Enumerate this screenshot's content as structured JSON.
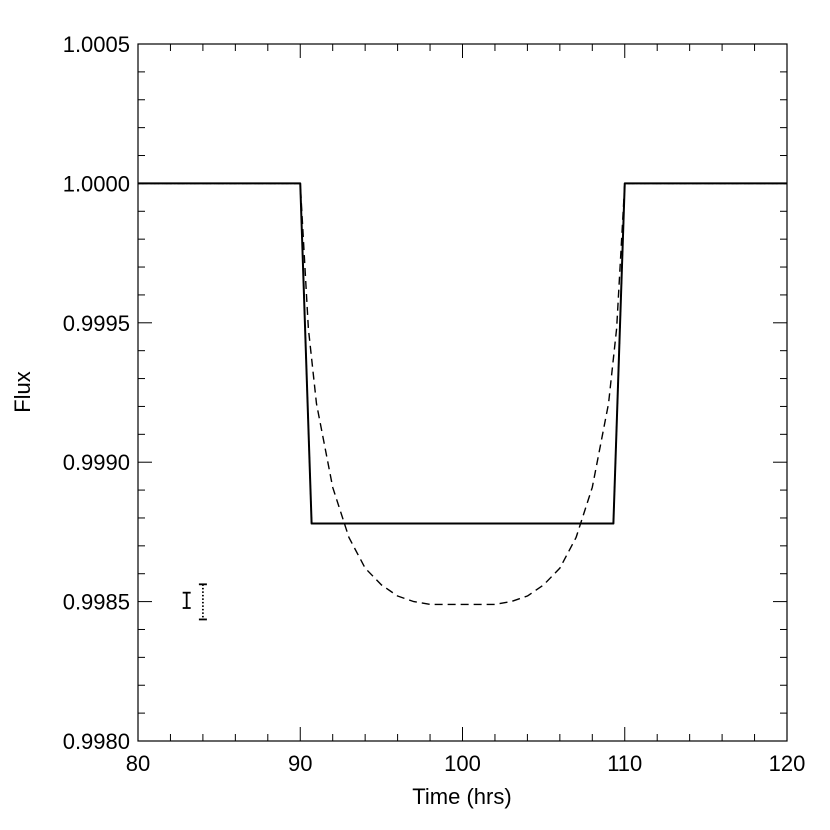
{
  "chart_data": {
    "type": "line",
    "title": "",
    "xlabel": "Time (hrs)",
    "ylabel": "Flux",
    "xlim": [
      80,
      120
    ],
    "ylim": [
      0.998,
      1.0005
    ],
    "x_ticks": [
      80,
      90,
      100,
      110,
      120
    ],
    "x_tick_labels": [
      "80",
      "90",
      "100",
      "110",
      "120"
    ],
    "y_ticks": [
      0.998,
      0.9985,
      0.999,
      0.9995,
      1.0,
      1.0005
    ],
    "y_tick_labels": [
      "0.9980",
      "0.9985",
      "0.9990",
      "0.9995",
      "1.0000",
      "1.0005"
    ],
    "grid": false,
    "legend": "none",
    "series": [
      {
        "style": "solid",
        "color": "#000000",
        "x": [
          80,
          90,
          90.7,
          109.3,
          110,
          120
        ],
        "y": [
          1.0,
          1.0,
          0.99878,
          0.99878,
          1.0,
          1.0
        ]
      },
      {
        "style": "dotted",
        "color": "#000000",
        "x": [
          80,
          90,
          90.7,
          109.3,
          110,
          120
        ],
        "y": [
          1.0,
          1.0,
          0.99878,
          0.99878,
          1.0,
          1.0
        ]
      },
      {
        "style": "dashed",
        "color": "#000000",
        "x": [
          80,
          90,
          90.5,
          91,
          92,
          93,
          94,
          95,
          96,
          97,
          98,
          99,
          100,
          101,
          102,
          103,
          104,
          105,
          106,
          107,
          108,
          109,
          109.5,
          110,
          120
        ],
        "y": [
          1.0,
          1.0,
          0.99948,
          0.99921,
          0.99891,
          0.99873,
          0.99862,
          0.99856,
          0.99852,
          0.9985,
          0.99849,
          0.99849,
          0.99849,
          0.99849,
          0.99849,
          0.9985,
          0.99852,
          0.99856,
          0.99862,
          0.99873,
          0.99891,
          0.99921,
          0.99948,
          1.0,
          1.0
        ]
      }
    ],
    "error_bars": [
      {
        "style": "solid",
        "x": 83.0,
        "y_low": 0.998477,
        "y_high": 0.998532
      },
      {
        "style": "dotted",
        "x": 84.0,
        "y_low": 0.998436,
        "y_high": 0.998562
      }
    ]
  }
}
